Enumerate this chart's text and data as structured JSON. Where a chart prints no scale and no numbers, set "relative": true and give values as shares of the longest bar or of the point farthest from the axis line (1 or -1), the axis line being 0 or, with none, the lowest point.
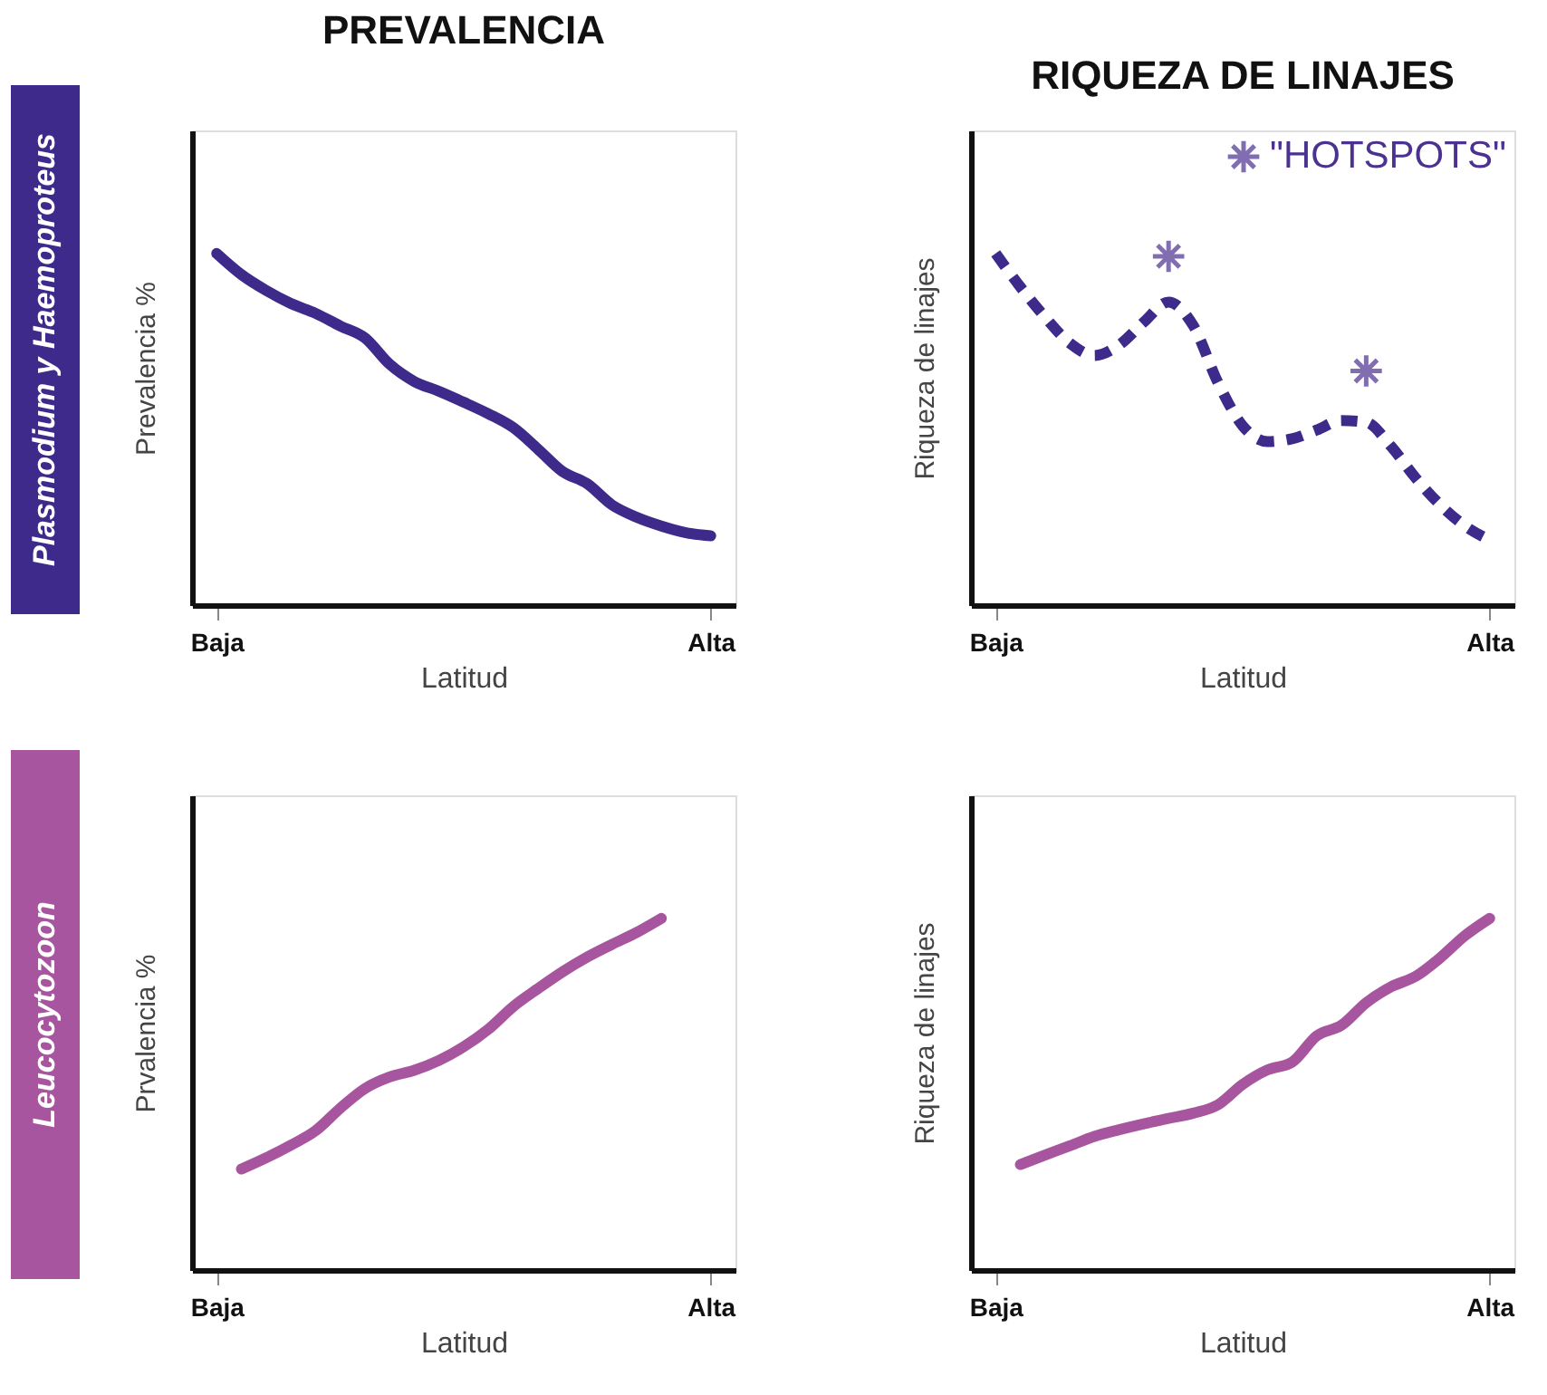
{
  "chart_data": [
    {
      "type": "line",
      "title": "PREVALENCIA",
      "xlabel": "Latitud",
      "ylabel": "Prevalencia %",
      "relative": true,
      "tick_labels": "x",
      "grid": false,
      "line_style": "solid",
      "annotations": [
        "Plasmodium y Haemoproteus"
      ],
      "categories": [
        "Baja",
        null,
        null,
        null,
        null,
        null,
        null,
        null,
        null,
        null,
        null,
        null,
        null,
        null,
        null,
        null,
        null,
        null,
        null,
        null,
        "Alta"
      ],
      "series": [
        {
          "color": "#3d2a8a",
          "values": [
            1,
            0.94,
            0.895,
            0.858,
            0.83,
            0.794,
            0.76,
            0.685,
            0.636,
            0.608,
            0.577,
            0.544,
            0.505,
            0.444,
            0.38,
            0.345,
            0.285,
            0.25,
            0.225,
            0.206,
            0.197
          ]
        }
      ]
    },
    {
      "type": "line",
      "title": "RIQUEZA DE LINAJES",
      "xlabel": "Latitud",
      "ylabel": "Riqueza de linajes",
      "relative": true,
      "tick_labels": "x",
      "grid": false,
      "legend": "top right",
      "categories": [
        "Baja",
        null,
        null,
        null,
        null,
        null,
        null,
        null,
        null,
        null,
        null,
        null,
        null,
        null,
        null,
        null,
        null,
        null,
        null,
        null,
        "Alta"
      ],
      "series": [
        {
          "color": "#3d2a8a",
          "line_style": "dashed",
          "values": [
            1,
            0.905,
            0.819,
            0.745,
            0.71,
            0.74,
            0.805,
            0.862,
            0.795,
            0.633,
            0.51,
            0.465,
            0.473,
            0.498,
            0.525,
            0.52,
            0.452,
            0.362,
            0.285,
            0.225,
            0.185
          ]
        },
        {
          "type": "scatter",
          "name": "\"HOTSPOTS\"",
          "color": "#4b3190",
          "marker": "cross",
          "values": [
            null,
            null,
            null,
            null,
            null,
            null,
            null,
            0.992,
            null,
            null,
            null,
            null,
            null,
            null,
            null,
            0.666,
            null,
            null,
            null,
            null,
            null
          ]
        }
      ]
    },
    {
      "type": "line",
      "xlabel": "Latitud",
      "ylabel": "Prvalencia %",
      "relative": true,
      "tick_labels": "x",
      "grid": false,
      "line_style": "solid",
      "annotations": [
        "Leucocytozoon"
      ],
      "categories": [
        "Baja",
        null,
        null,
        null,
        null,
        null,
        null,
        null,
        null,
        null,
        null,
        null,
        null,
        null,
        null,
        null,
        null,
        null,
        null,
        null,
        "Alta"
      ],
      "series": [
        {
          "color": "#a8559f",
          "values": [
            null,
            0.287,
            0.319,
            0.355,
            0.396,
            0.46,
            0.516,
            0.549,
            0.568,
            0.596,
            0.635,
            0.685,
            0.749,
            0.8,
            0.848,
            0.89,
            0.926,
            0.96,
            1,
            null,
            null
          ]
        }
      ]
    },
    {
      "type": "line",
      "xlabel": "Latitud",
      "ylabel": "Riqueza de linajes",
      "relative": true,
      "tick_labels": "x",
      "grid": false,
      "line_style": "solid",
      "categories": [
        "Baja",
        null,
        null,
        null,
        null,
        null,
        null,
        null,
        null,
        null,
        null,
        null,
        null,
        null,
        null,
        null,
        null,
        null,
        null,
        null,
        "Alta"
      ],
      "series": [
        {
          "color": "#a8559f",
          "values": [
            null,
            0.3,
            0.327,
            0.353,
            0.38,
            0.399,
            0.416,
            0.431,
            0.446,
            0.47,
            0.528,
            0.569,
            0.591,
            0.666,
            0.696,
            0.76,
            0.805,
            0.835,
            0.888,
            0.951,
            1
          ]
        }
      ]
    }
  ]
}
